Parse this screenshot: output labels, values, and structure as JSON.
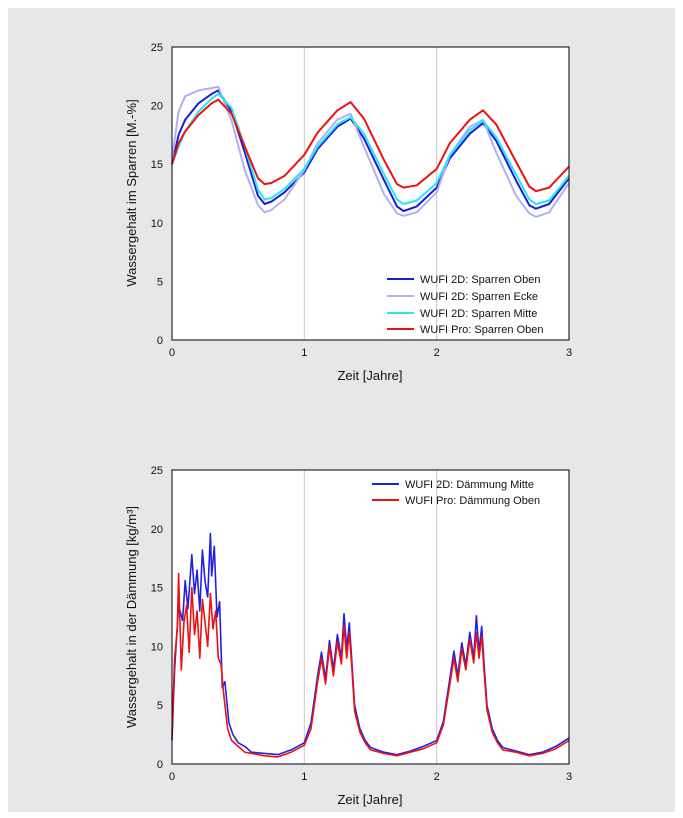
{
  "chart_data": [
    {
      "type": "line",
      "xlabel": "Zeit [Jahre]",
      "ylabel": "Wassergehalt im Sparren [M.-%]",
      "xlim": [
        0,
        3
      ],
      "ylim": [
        0,
        25
      ],
      "xticks": [
        "0",
        "1",
        "2",
        "3"
      ],
      "yticks": [
        "0",
        "5",
        "10",
        "15",
        "20",
        "25"
      ],
      "grid": "vertical at x=1 and x=2",
      "legend_position": "bottom-right",
      "series": [
        {
          "name": "WUFI 2D: Sparren Oben",
          "color": "#1a1adb",
          "x": [
            0,
            0.05,
            0.1,
            0.2,
            0.3,
            0.35,
            0.45,
            0.55,
            0.65,
            0.7,
            0.75,
            0.85,
            1.0,
            1.1,
            1.25,
            1.35,
            1.45,
            1.6,
            1.7,
            1.75,
            1.85,
            2.0,
            2.1,
            2.25,
            2.35,
            2.45,
            2.6,
            2.7,
            2.75,
            2.85,
            3.0
          ],
          "values": [
            15,
            17.5,
            18.8,
            20.2,
            21,
            21.3,
            19.5,
            16.0,
            12.3,
            11.6,
            11.8,
            12.6,
            14.3,
            16.3,
            18.2,
            18.9,
            17.2,
            13.7,
            11.4,
            11.0,
            11.4,
            13.0,
            15.5,
            17.6,
            18.5,
            17.0,
            13.6,
            11.5,
            11.2,
            11.6,
            13.8
          ]
        },
        {
          "name": "WUFI 2D: Sparren Ecke",
          "color": "#b0b0f0",
          "x": [
            0,
            0.05,
            0.1,
            0.2,
            0.3,
            0.35,
            0.45,
            0.55,
            0.65,
            0.7,
            0.75,
            0.85,
            1.0,
            1.1,
            1.25,
            1.35,
            1.45,
            1.6,
            1.7,
            1.75,
            1.85,
            2.0,
            2.1,
            2.25,
            2.35,
            2.45,
            2.6,
            2.7,
            2.75,
            2.85,
            3.0
          ],
          "values": [
            15.5,
            19.5,
            20.8,
            21.3,
            21.5,
            21.6,
            18.7,
            14.5,
            11.5,
            10.9,
            11.1,
            12.0,
            14.5,
            16.8,
            18.8,
            19.3,
            16.5,
            12.5,
            10.8,
            10.6,
            10.9,
            12.6,
            15.8,
            18.2,
            18.8,
            16.0,
            12.3,
            10.8,
            10.5,
            10.9,
            13.4
          ]
        },
        {
          "name": "WUFI 2D: Sparren Mitte",
          "color": "#27e6f0",
          "x": [
            0,
            0.05,
            0.1,
            0.2,
            0.3,
            0.35,
            0.45,
            0.55,
            0.65,
            0.7,
            0.75,
            0.85,
            1.0,
            1.1,
            1.25,
            1.35,
            1.45,
            1.6,
            1.7,
            1.75,
            1.85,
            2.0,
            2.1,
            2.25,
            2.35,
            2.45,
            2.6,
            2.7,
            2.75,
            2.85,
            3.0
          ],
          "values": [
            15,
            16.5,
            17.8,
            19.5,
            20.6,
            21.0,
            19.8,
            16.5,
            12.8,
            12.0,
            12.1,
            12.9,
            14.6,
            16.5,
            18.4,
            19.0,
            17.6,
            14.2,
            12.0,
            11.6,
            11.9,
            13.4,
            15.8,
            17.9,
            18.7,
            17.3,
            14.1,
            12.0,
            11.6,
            11.9,
            14.0
          ]
        },
        {
          "name": "WUFI Pro: Sparren Oben",
          "color": "#ee1111",
          "x": [
            0,
            0.05,
            0.1,
            0.2,
            0.3,
            0.35,
            0.45,
            0.55,
            0.65,
            0.7,
            0.75,
            0.85,
            1.0,
            1.1,
            1.25,
            1.35,
            1.45,
            1.6,
            1.7,
            1.75,
            1.85,
            2.0,
            2.1,
            2.25,
            2.35,
            2.45,
            2.6,
            2.7,
            2.75,
            2.85,
            3.0
          ],
          "values": [
            15,
            16.8,
            17.8,
            19.2,
            20.2,
            20.5,
            19.3,
            16.5,
            13.8,
            13.3,
            13.4,
            14.0,
            15.8,
            17.7,
            19.6,
            20.3,
            18.9,
            15.4,
            13.3,
            13.0,
            13.2,
            14.6,
            16.8,
            18.8,
            19.6,
            18.4,
            15.2,
            13.1,
            12.7,
            13.0,
            14.8
          ]
        }
      ]
    },
    {
      "type": "line",
      "xlabel": "Zeit [Jahre]",
      "ylabel": "Wassergehalt in der Dämmung [kg/m³]",
      "xlim": [
        0,
        3
      ],
      "ylim": [
        0,
        25
      ],
      "xticks": [
        "0",
        "1",
        "2",
        "3"
      ],
      "yticks": [
        "0",
        "5",
        "10",
        "15",
        "20",
        "25"
      ],
      "grid": "vertical at x=1 and x=2",
      "legend_position": "top-right",
      "series": [
        {
          "name": "WUFI 2D: Dämmung Mitte",
          "color": "#2222dd",
          "x": [
            0,
            0.02,
            0.05,
            0.08,
            0.1,
            0.12,
            0.15,
            0.17,
            0.19,
            0.21,
            0.23,
            0.25,
            0.27,
            0.29,
            0.3,
            0.32,
            0.34,
            0.36,
            0.38,
            0.4,
            0.43,
            0.46,
            0.5,
            0.55,
            0.6,
            0.7,
            0.8,
            0.9,
            1.0,
            1.05,
            1.1,
            1.13,
            1.16,
            1.19,
            1.22,
            1.25,
            1.28,
            1.3,
            1.32,
            1.34,
            1.36,
            1.38,
            1.42,
            1.46,
            1.5,
            1.6,
            1.7,
            1.8,
            1.9,
            2.0,
            2.05,
            2.1,
            2.13,
            2.16,
            2.19,
            2.22,
            2.25,
            2.28,
            2.3,
            2.32,
            2.34,
            2.36,
            2.38,
            2.42,
            2.46,
            2.5,
            2.6,
            2.7,
            2.8,
            2.9,
            3.0
          ],
          "values": [
            2,
            8,
            13.5,
            12.2,
            15.6,
            13.2,
            17.8,
            14.5,
            16.5,
            13.0,
            18.2,
            15.5,
            14.2,
            19.6,
            16.0,
            18.5,
            12.5,
            13.8,
            6.5,
            7.0,
            3.5,
            2.5,
            1.8,
            1.5,
            1.0,
            0.9,
            0.8,
            1.2,
            1.8,
            3.5,
            7.5,
            9.5,
            7.2,
            10.5,
            8.0,
            11.0,
            9.0,
            12.8,
            9.8,
            12.0,
            8.5,
            5.0,
            3.0,
            2.0,
            1.4,
            1.0,
            0.8,
            1.1,
            1.5,
            2.0,
            3.6,
            7.3,
            9.6,
            7.5,
            10.3,
            8.4,
            11.2,
            9.0,
            12.6,
            9.5,
            11.7,
            8.2,
            5.0,
            3.0,
            2.0,
            1.4,
            1.1,
            0.8,
            1.0,
            1.5,
            2.2
          ]
        },
        {
          "name": "WUFI Pro: Dämmung Oben",
          "color": "#ee1111",
          "x": [
            0,
            0.02,
            0.04,
            0.05,
            0.07,
            0.09,
            0.11,
            0.13,
            0.15,
            0.17,
            0.19,
            0.21,
            0.23,
            0.25,
            0.27,
            0.29,
            0.31,
            0.33,
            0.35,
            0.37,
            0.39,
            0.42,
            0.45,
            0.5,
            0.55,
            0.6,
            0.7,
            0.8,
            0.9,
            1.0,
            1.05,
            1.1,
            1.13,
            1.16,
            1.19,
            1.22,
            1.25,
            1.28,
            1.3,
            1.32,
            1.34,
            1.36,
            1.38,
            1.42,
            1.46,
            1.5,
            1.6,
            1.7,
            1.8,
            1.9,
            2.0,
            2.05,
            2.1,
            2.13,
            2.16,
            2.19,
            2.22,
            2.25,
            2.28,
            2.3,
            2.32,
            2.34,
            2.36,
            2.38,
            2.42,
            2.46,
            2.5,
            2.6,
            2.7,
            2.8,
            2.9,
            3.0
          ],
          "values": [
            2.5,
            9,
            11.5,
            16.2,
            8.0,
            12.0,
            13.5,
            9.5,
            15.0,
            11.0,
            13.0,
            9.0,
            14.0,
            12.0,
            10.0,
            14.5,
            11.5,
            13.0,
            9.0,
            8.5,
            6.0,
            3.0,
            2.0,
            1.5,
            1.0,
            0.9,
            0.7,
            0.6,
            1.0,
            1.6,
            3.0,
            7.0,
            9.0,
            6.8,
            10.0,
            7.5,
            10.4,
            8.5,
            11.8,
            9.0,
            11.2,
            8.0,
            4.5,
            2.7,
            1.8,
            1.2,
            0.9,
            0.7,
            1.0,
            1.3,
            1.8,
            3.3,
            6.8,
            9.0,
            7.0,
            9.8,
            8.0,
            10.6,
            8.6,
            11.2,
            9.0,
            10.9,
            7.6,
            4.6,
            2.7,
            1.8,
            1.2,
            1.0,
            0.7,
            0.9,
            1.3,
            2.0
          ]
        }
      ]
    }
  ]
}
